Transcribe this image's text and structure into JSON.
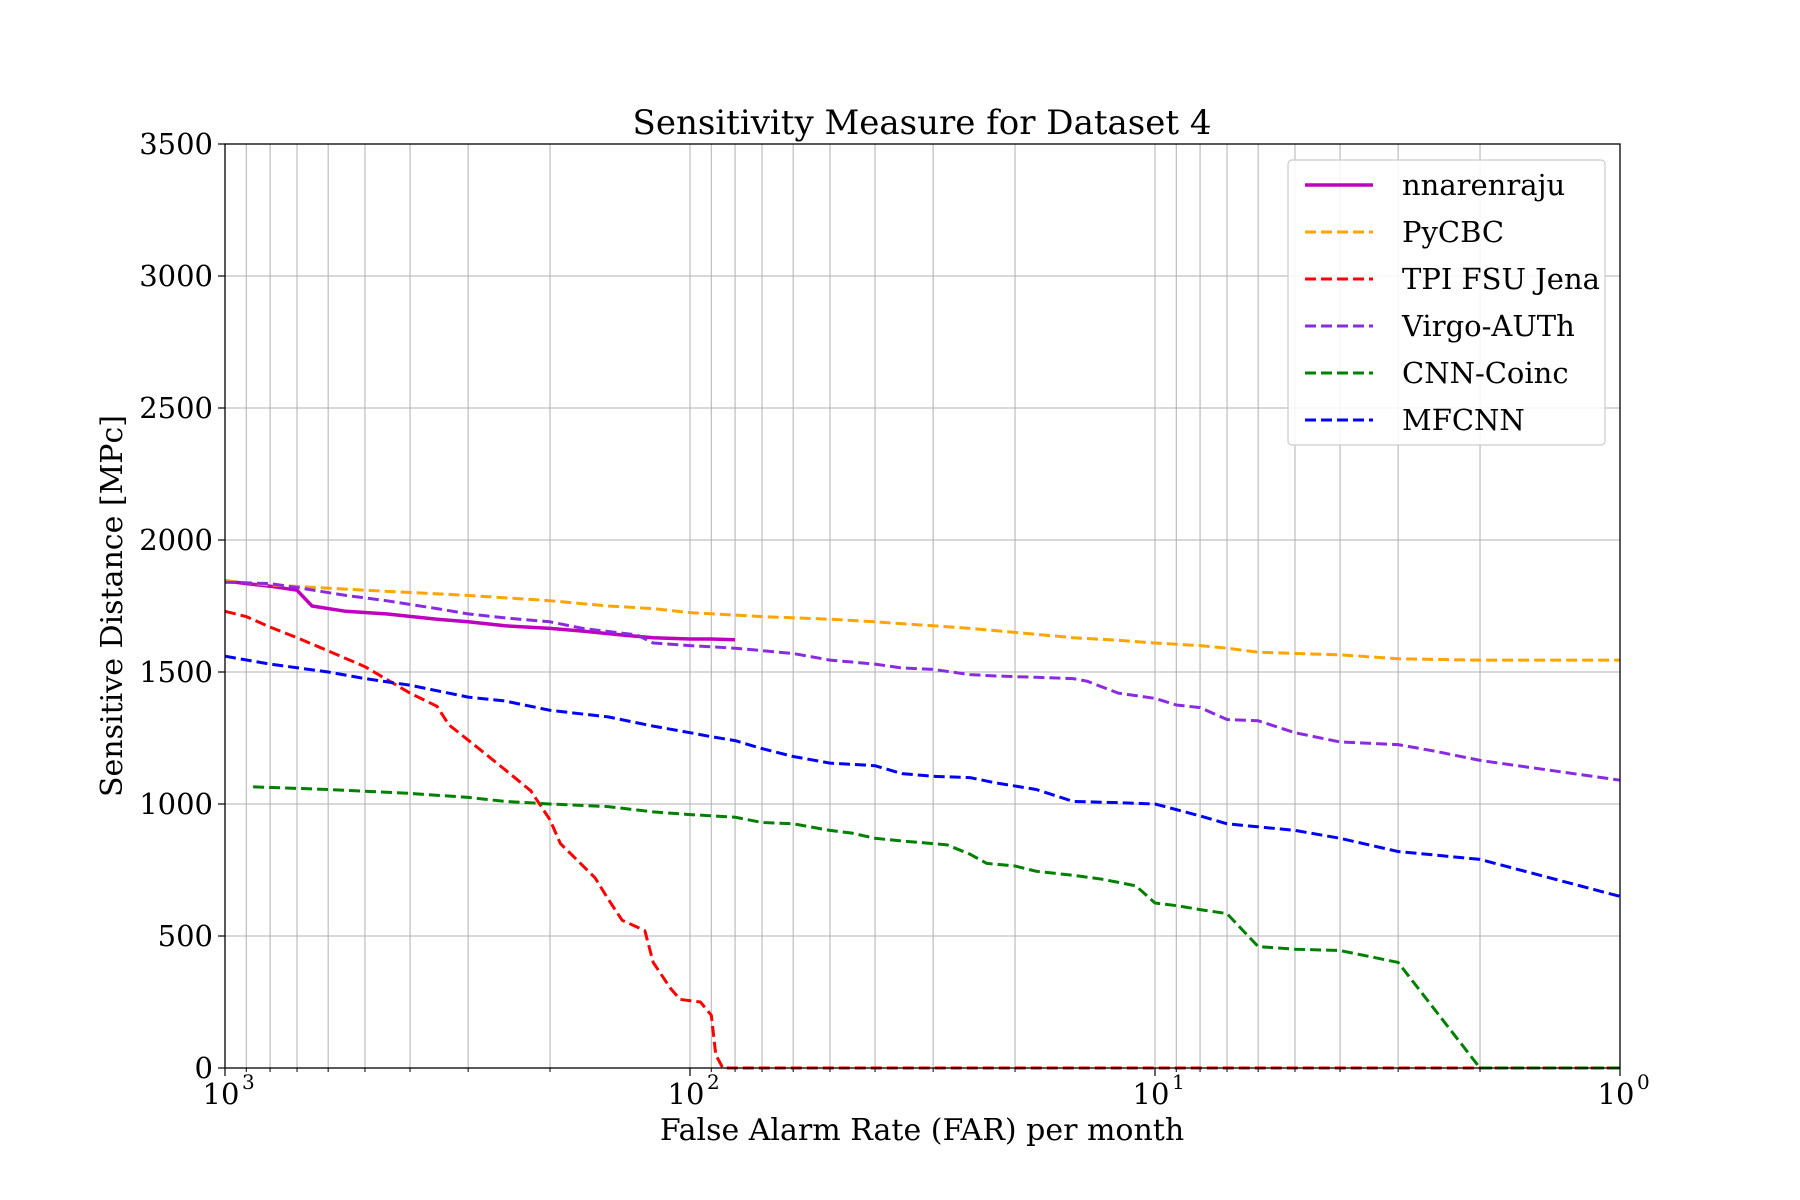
{
  "chart_data": {
    "type": "line",
    "title": "Sensitivity Measure for Dataset 4",
    "xlabel": "False Alarm Rate (FAR) per month",
    "ylabel": "Sensitive Distance [MPc]",
    "x_scale": "log",
    "x_reversed": true,
    "xlim": [
      1000,
      1
    ],
    "ylim": [
      0,
      3500
    ],
    "x_ticks": [
      {
        "value": 1000,
        "base": "10",
        "exp": "3"
      },
      {
        "value": 100,
        "base": "10",
        "exp": "2"
      },
      {
        "value": 10,
        "base": "10",
        "exp": "1"
      },
      {
        "value": 1,
        "base": "10",
        "exp": "0"
      }
    ],
    "y_ticks": [
      "0",
      "500",
      "1000",
      "1500",
      "2000",
      "2500",
      "3000",
      "3500"
    ],
    "y_tick_values": [
      0,
      500,
      1000,
      1500,
      2000,
      2500,
      3000,
      3500
    ],
    "grid": true,
    "legend_position": "top-right",
    "series": [
      {
        "name": "nnarenraju",
        "color": "#bf00bf",
        "style": "solid",
        "points": [
          [
            1000,
            1845
          ],
          [
            900,
            1835
          ],
          [
            800,
            1825
          ],
          [
            700,
            1810
          ],
          [
            650,
            1750
          ],
          [
            550,
            1730
          ],
          [
            450,
            1720
          ],
          [
            350,
            1700
          ],
          [
            300,
            1690
          ],
          [
            250,
            1675
          ],
          [
            200,
            1665
          ],
          [
            170,
            1655
          ],
          [
            140,
            1640
          ],
          [
            120,
            1630
          ],
          [
            100,
            1625
          ],
          [
            90,
            1625
          ],
          [
            80,
            1622
          ]
        ]
      },
      {
        "name": "PyCBC",
        "color": "#ffa500",
        "style": "dashed",
        "points": [
          [
            1000,
            1845
          ],
          [
            800,
            1830
          ],
          [
            500,
            1810
          ],
          [
            300,
            1790
          ],
          [
            200,
            1770
          ],
          [
            150,
            1750
          ],
          [
            120,
            1740
          ],
          [
            100,
            1725
          ],
          [
            70,
            1710
          ],
          [
            50,
            1700
          ],
          [
            40,
            1690
          ],
          [
            30,
            1675
          ],
          [
            25,
            1665
          ],
          [
            20,
            1650
          ],
          [
            15,
            1630
          ],
          [
            12,
            1620
          ],
          [
            10,
            1610
          ],
          [
            8,
            1600
          ],
          [
            7,
            1590
          ],
          [
            6,
            1575
          ],
          [
            5,
            1570
          ],
          [
            4,
            1565
          ],
          [
            3,
            1550
          ],
          [
            2,
            1545
          ],
          [
            1,
            1545
          ]
        ]
      },
      {
        "name": "TPI FSU Jena",
        "color": "#ff0000",
        "style": "dashed",
        "points": [
          [
            1000,
            1730
          ],
          [
            900,
            1710
          ],
          [
            800,
            1670
          ],
          [
            700,
            1630
          ],
          [
            600,
            1580
          ],
          [
            500,
            1520
          ],
          [
            400,
            1420
          ],
          [
            350,
            1370
          ],
          [
            330,
            1300
          ],
          [
            280,
            1200
          ],
          [
            250,
            1130
          ],
          [
            220,
            1050
          ],
          [
            200,
            940
          ],
          [
            190,
            850
          ],
          [
            160,
            720
          ],
          [
            150,
            640
          ],
          [
            140,
            560
          ],
          [
            125,
            520
          ],
          [
            120,
            400
          ],
          [
            110,
            300
          ],
          [
            105,
            260
          ],
          [
            95,
            250
          ],
          [
            90,
            200
          ],
          [
            88,
            50
          ],
          [
            85,
            0
          ],
          [
            1,
            0
          ]
        ]
      },
      {
        "name": "Virgo-AUTh",
        "color": "#8a2be2",
        "style": "dashed",
        "points": [
          [
            1000,
            1840
          ],
          [
            800,
            1835
          ],
          [
            700,
            1820
          ],
          [
            550,
            1790
          ],
          [
            450,
            1770
          ],
          [
            350,
            1740
          ],
          [
            300,
            1720
          ],
          [
            250,
            1705
          ],
          [
            200,
            1690
          ],
          [
            170,
            1665
          ],
          [
            130,
            1640
          ],
          [
            120,
            1610
          ],
          [
            100,
            1600
          ],
          [
            80,
            1590
          ],
          [
            60,
            1570
          ],
          [
            50,
            1545
          ],
          [
            40,
            1530
          ],
          [
            35,
            1515
          ],
          [
            30,
            1510
          ],
          [
            25,
            1490
          ],
          [
            22,
            1485
          ],
          [
            18,
            1480
          ],
          [
            15,
            1475
          ],
          [
            14,
            1465
          ],
          [
            12,
            1420
          ],
          [
            10,
            1400
          ],
          [
            9,
            1375
          ],
          [
            8,
            1365
          ],
          [
            7,
            1320
          ],
          [
            6,
            1315
          ],
          [
            5,
            1270
          ],
          [
            4,
            1235
          ],
          [
            3,
            1225
          ],
          [
            2.5,
            1200
          ],
          [
            2,
            1165
          ],
          [
            1,
            1090
          ]
        ]
      },
      {
        "name": "CNN-Coinc",
        "color": "#008000",
        "style": "dashed",
        "points": [
          [
            870,
            1065
          ],
          [
            600,
            1055
          ],
          [
            400,
            1040
          ],
          [
            300,
            1025
          ],
          [
            250,
            1010
          ],
          [
            200,
            1000
          ],
          [
            150,
            990
          ],
          [
            120,
            970
          ],
          [
            100,
            960
          ],
          [
            80,
            950
          ],
          [
            70,
            930
          ],
          [
            60,
            925
          ],
          [
            50,
            900
          ],
          [
            45,
            890
          ],
          [
            40,
            870
          ],
          [
            35,
            860
          ],
          [
            30,
            850
          ],
          [
            28,
            845
          ],
          [
            25,
            810
          ],
          [
            23,
            775
          ],
          [
            20,
            765
          ],
          [
            18,
            745
          ],
          [
            15,
            730
          ],
          [
            13,
            715
          ],
          [
            11,
            690
          ],
          [
            10,
            625
          ],
          [
            9,
            615
          ],
          [
            8,
            600
          ],
          [
            7,
            585
          ],
          [
            6,
            460
          ],
          [
            5,
            450
          ],
          [
            4,
            445
          ],
          [
            3,
            400
          ],
          [
            2,
            0
          ],
          [
            1,
            0
          ]
        ]
      },
      {
        "name": "MFCNN",
        "color": "#0000ff",
        "style": "dashed",
        "points": [
          [
            1000,
            1560
          ],
          [
            800,
            1530
          ],
          [
            600,
            1500
          ],
          [
            500,
            1475
          ],
          [
            400,
            1450
          ],
          [
            300,
            1405
          ],
          [
            250,
            1390
          ],
          [
            200,
            1355
          ],
          [
            150,
            1330
          ],
          [
            120,
            1295
          ],
          [
            100,
            1270
          ],
          [
            90,
            1255
          ],
          [
            80,
            1240
          ],
          [
            70,
            1210
          ],
          [
            60,
            1180
          ],
          [
            50,
            1155
          ],
          [
            40,
            1145
          ],
          [
            35,
            1115
          ],
          [
            30,
            1105
          ],
          [
            25,
            1100
          ],
          [
            22,
            1080
          ],
          [
            18,
            1055
          ],
          [
            15,
            1010
          ],
          [
            12,
            1005
          ],
          [
            10,
            1000
          ],
          [
            8,
            955
          ],
          [
            7,
            925
          ],
          [
            5,
            900
          ],
          [
            4,
            870
          ],
          [
            3,
            820
          ],
          [
            2,
            790
          ],
          [
            1,
            650
          ]
        ]
      }
    ]
  }
}
